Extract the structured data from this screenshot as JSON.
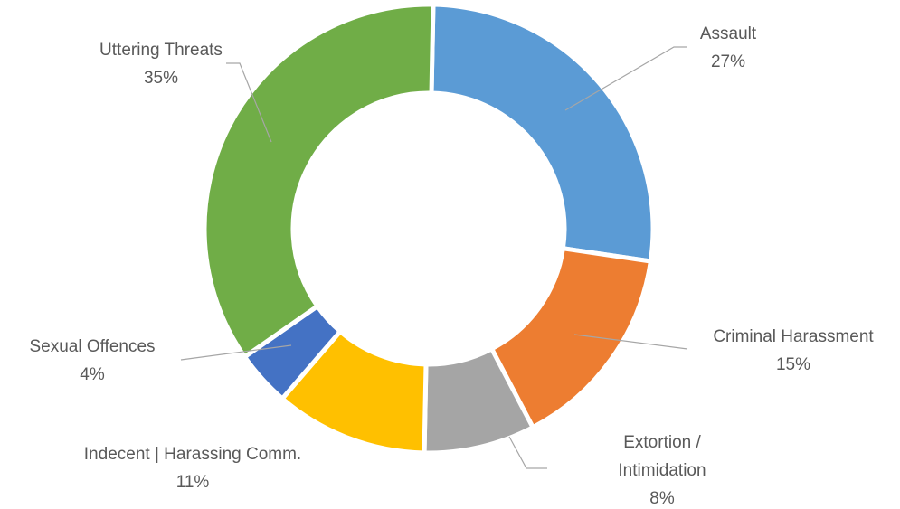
{
  "chart_data": {
    "type": "pie",
    "categories": [
      "Assault",
      "Criminal Harassment",
      "Extortion / Intimidation",
      "Indecent | Harassing Comm.",
      "Sexual Offences",
      "Uttering Threats"
    ],
    "values": [
      27,
      15,
      8,
      11,
      4,
      35
    ],
    "value_labels": [
      "27%",
      "15%",
      "8%",
      "11%",
      "4%",
      "35%"
    ],
    "colors": [
      "#5b9bd5",
      "#ed7d31",
      "#a5a5a5",
      "#ffc000",
      "#4472c4",
      "#70ad47"
    ]
  }
}
